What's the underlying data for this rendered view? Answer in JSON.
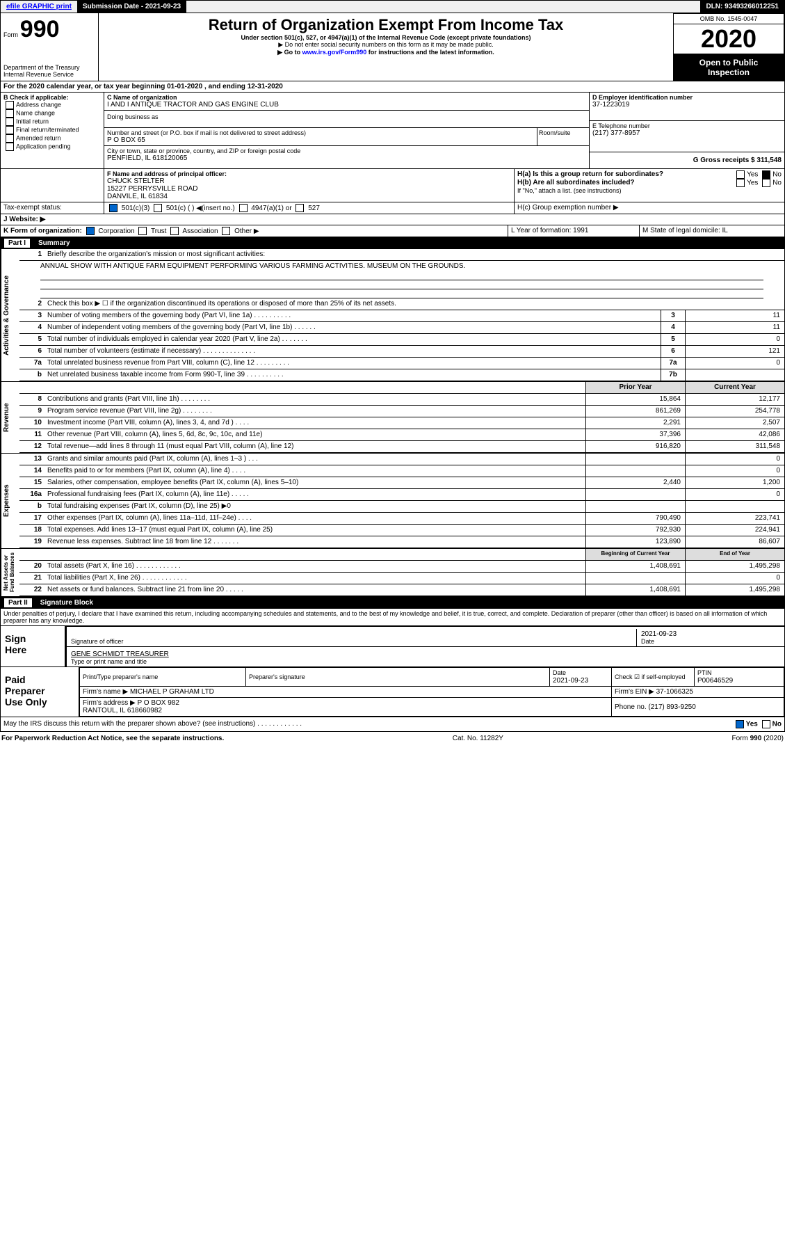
{
  "topbar": {
    "efile": "efile GRAPHIC print",
    "subdate_lbl": "Submission Date - 2021-09-23",
    "dln": "DLN: 93493266012251"
  },
  "header": {
    "form": "Form",
    "formno": "990",
    "dept": "Department of the Treasury\nInternal Revenue Service",
    "title": "Return of Organization Exempt From Income Tax",
    "sub1": "Under section 501(c), 527, or 4947(a)(1) of the Internal Revenue Code (except private foundations)",
    "sub2": "▶ Do not enter social security numbers on this form as it may be made public.",
    "sub3": "▶ Go to www.irs.gov/Form990 for instructions and the latest information.",
    "omb": "OMB No. 1545-0047",
    "year": "2020",
    "open": "Open to Public\nInspection"
  },
  "a": {
    "text": "For the 2020 calendar year, or tax year beginning 01-01-2020     , and ending 12-31-2020"
  },
  "b": {
    "label": "B Check if applicable:",
    "opts": [
      "Address change",
      "Name change",
      "Initial return",
      "Final return/terminated",
      "Amended return",
      "Application pending"
    ]
  },
  "c": {
    "label": "C Name of organization",
    "name": "I AND I ANTIQUE TRACTOR AND GAS ENGINE CLUB",
    "dba": "Doing business as",
    "addr_lbl": "Number and street (or P.O. box if mail is not delivered to street address)",
    "room": "Room/suite",
    "addr": "P O BOX 65",
    "city_lbl": "City or town, state or province, country, and ZIP or foreign postal code",
    "city": "PENFIELD, IL  618120065"
  },
  "d": {
    "label": "D Employer identification number",
    "val": "37-1223019"
  },
  "e": {
    "label": "E Telephone number",
    "val": "(217) 377-8957"
  },
  "g": {
    "label": "G Gross receipts $ 311,548"
  },
  "f": {
    "label": "F  Name and address of principal officer:",
    "name": "CHUCK STELTER",
    "addr": "15227 PERRYSVILLE ROAD\nDANVILE, IL  61834"
  },
  "h": {
    "a": "H(a)  Is this a group return for subordinates?",
    "b": "H(b)  Are all subordinates included?",
    "c": "If \"No,\" attach a list. (see instructions)",
    "d": "H(c)  Group exemption number ▶",
    "yes": "Yes",
    "no": "No"
  },
  "i": {
    "label": "Tax-exempt status:",
    "opts": [
      "501(c)(3)",
      "501(c) (   ) ◀(insert no.)",
      "4947(a)(1) or",
      "527"
    ]
  },
  "j": {
    "label": "J   Website: ▶"
  },
  "k": {
    "label": "K Form of organization:",
    "opts": [
      "Corporation",
      "Trust",
      "Association",
      "Other ▶"
    ]
  },
  "l": {
    "label": "L Year of formation: 1991"
  },
  "m": {
    "label": "M State of legal domicile: IL"
  },
  "part1": {
    "label": "Part I",
    "title": "Summary"
  },
  "summary": {
    "l1": "Briefly describe the organization's mission or most significant activities:",
    "mission": "ANNUAL SHOW WITH ANTIQUE FARM EQUIPMENT PERFORMING VARIOUS FARMING ACTIVITIES. MUSEUM ON THE GROUNDS.",
    "l2": "Check this box ▶ ☐  if the organization discontinued its operations or disposed of more than 25% of its net assets.",
    "rows": [
      {
        "n": "3",
        "d": "Number of voting members of the governing body (Part VI, line 1a)   .   .   .   .   .   .   .   .   .   .",
        "r": "3",
        "v": "11"
      },
      {
        "n": "4",
        "d": "Number of independent voting members of the governing body (Part VI, line 1b)   .   .   .   .   .   .",
        "r": "4",
        "v": "11"
      },
      {
        "n": "5",
        "d": "Total number of individuals employed in calendar year 2020 (Part V, line 2a)   .   .   .   .   .   .   .",
        "r": "5",
        "v": "0"
      },
      {
        "n": "6",
        "d": "Total number of volunteers (estimate if necessary)   .   .   .   .   .   .   .   .   .   .   .   .   .   .",
        "r": "6",
        "v": "121"
      },
      {
        "n": "7a",
        "d": "Total unrelated business revenue from Part VIII, column (C), line 12   .   .   .   .   .   .   .   .   .",
        "r": "7a",
        "v": "0"
      },
      {
        "n": "b",
        "d": "Net unrelated business taxable income from Form 990-T, line 39   .   .   .   .   .   .   .   .   .   .",
        "r": "7b",
        "v": ""
      }
    ]
  },
  "revhdr": {
    "prior": "Prior Year",
    "curr": "Current Year"
  },
  "revenue": [
    {
      "n": "8",
      "d": "Contributions and grants (Part VIII, line 1h)   .   .   .   .   .   .   .   .",
      "p": "15,864",
      "c": "12,177"
    },
    {
      "n": "9",
      "d": "Program service revenue (Part VIII, line 2g)   .   .   .   .   .   .   .   .",
      "p": "861,269",
      "c": "254,778"
    },
    {
      "n": "10",
      "d": "Investment income (Part VIII, column (A), lines 3, 4, and 7d )   .   .   .   .",
      "p": "2,291",
      "c": "2,507"
    },
    {
      "n": "11",
      "d": "Other revenue (Part VIII, column (A), lines 5, 6d, 8c, 9c, 10c, and 11e)",
      "p": "37,396",
      "c": "42,086"
    },
    {
      "n": "12",
      "d": "Total revenue—add lines 8 through 11 (must equal Part VIII, column (A), line 12)",
      "p": "916,820",
      "c": "311,548"
    }
  ],
  "expenses": [
    {
      "n": "13",
      "d": "Grants and similar amounts paid (Part IX, column (A), lines 1–3 )   .   .   .",
      "p": "",
      "c": "0"
    },
    {
      "n": "14",
      "d": "Benefits paid to or for members (Part IX, column (A), line 4)   .   .   .   .",
      "p": "",
      "c": "0"
    },
    {
      "n": "15",
      "d": "Salaries, other compensation, employee benefits (Part IX, column (A), lines 5–10)",
      "p": "2,440",
      "c": "1,200"
    },
    {
      "n": "16a",
      "d": "Professional fundraising fees (Part IX, column (A), line 11e)   .   .   .   .   .",
      "p": "",
      "c": "0"
    },
    {
      "n": "b",
      "d": "Total fundraising expenses (Part IX, column (D), line 25) ▶0",
      "p": "",
      "c": ""
    },
    {
      "n": "17",
      "d": "Other expenses (Part IX, column (A), lines 11a–11d, 11f–24e)   .   .   .   .",
      "p": "790,490",
      "c": "223,741"
    },
    {
      "n": "18",
      "d": "Total expenses. Add lines 13–17 (must equal Part IX, column (A), line 25)",
      "p": "792,930",
      "c": "224,941"
    },
    {
      "n": "19",
      "d": "Revenue less expenses. Subtract line 18 from line 12   .   .   .   .   .   .   .",
      "p": "123,890",
      "c": "86,607"
    }
  ],
  "nethdr": {
    "prior": "Beginning of Current Year",
    "curr": "End of Year"
  },
  "net": [
    {
      "n": "20",
      "d": "Total assets (Part X, line 16)   .   .   .   .   .   .   .   .   .   .   .   .",
      "p": "1,408,691",
      "c": "1,495,298"
    },
    {
      "n": "21",
      "d": "Total liabilities (Part X, line 26)   .   .   .   .   .   .   .   .   .   .   .   .",
      "p": "",
      "c": "0"
    },
    {
      "n": "22",
      "d": "Net assets or fund balances. Subtract line 21 from line 20   .   .   .   .   .",
      "p": "1,408,691",
      "c": "1,495,298"
    }
  ],
  "part2": {
    "label": "Part II",
    "title": "Signature Block"
  },
  "sig": {
    "decl": "Under penalties of perjury, I declare that I have examined this return, including accompanying schedules and statements, and to the best of my knowledge and belief, it is true, correct, and complete. Declaration of preparer (other than officer) is based on all information of which preparer has any knowledge.",
    "sign_here": "Sign\nHere",
    "sig_off": "Signature of officer",
    "date": "2021-09-23",
    "datelbl": "Date",
    "name": "GENE SCHMIDT TREASURER",
    "name_lbl": "Type or print name and title",
    "paid": "Paid\nPreparer\nUse Only",
    "prep_name_lbl": "Print/Type preparer's name",
    "prep_sig_lbl": "Preparer's signature",
    "prep_date_lbl": "Date",
    "prep_date": "2021-09-23",
    "check_lbl": "Check ☑ if self-employed",
    "ptin_lbl": "PTIN",
    "ptin": "P00646529",
    "firm_lbl": "Firm's name    ▶",
    "firm": "MICHAEL P GRAHAM LTD",
    "ein_lbl": "Firm's EIN ▶ 37-1066325",
    "firm_addr_lbl": "Firm's address ▶",
    "firm_addr": "P O BOX 982\nRANTOUL, IL  618660982",
    "phone_lbl": "Phone no. (217) 893-9250",
    "discuss": "May the IRS discuss this return with the preparer shown above? (see instructions)   .   .   .   .   .   .   .   .   .   .   .   .",
    "yes": "Yes",
    "no": "No"
  },
  "footer": {
    "left": "For Paperwork Reduction Act Notice, see the separate instructions.",
    "mid": "Cat. No. 11282Y",
    "right": "Form 990 (2020)"
  },
  "side": {
    "gov": "Activities & Governance",
    "rev": "Revenue",
    "exp": "Expenses",
    "net": "Net Assets or\nFund Balances"
  }
}
